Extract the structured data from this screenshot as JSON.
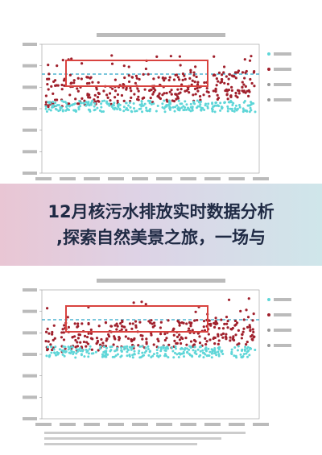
{
  "banner": {
    "lines": [
      "12月核污水排放实时数据分析",
      ",探索自然美景之旅，一场与"
    ]
  }
}
